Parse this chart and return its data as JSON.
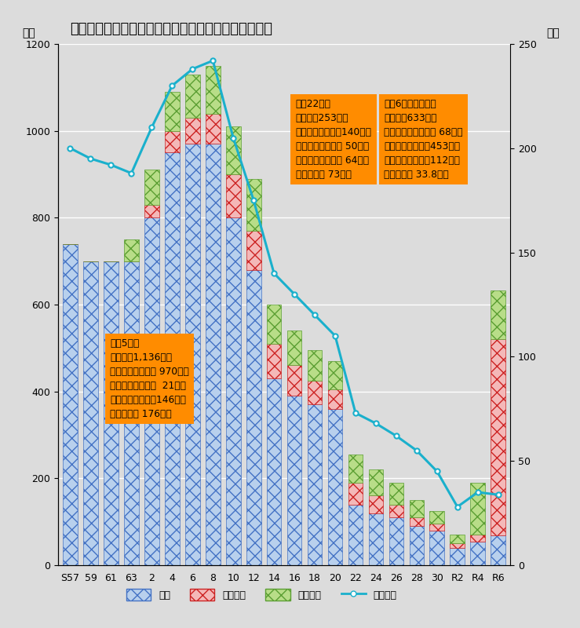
{
  "title": "ボートレース福岡売上・入場者数推移（都市圏除く）",
  "label_left": "億円",
  "label_right": "万人",
  "categories": [
    "S57",
    "59",
    "61",
    "63",
    "2",
    "4",
    "6",
    "8",
    "10",
    "12",
    "14",
    "16",
    "18",
    "20",
    "22",
    "24",
    "26",
    "28",
    "30",
    "R2",
    "R4",
    "R6"
  ],
  "honba": [
    740,
    700,
    700,
    700,
    800,
    950,
    970,
    970,
    800,
    680,
    430,
    390,
    370,
    360,
    140,
    120,
    110,
    90,
    80,
    40,
    55,
    68
  ],
  "denwa": [
    0,
    0,
    0,
    0,
    30,
    50,
    60,
    70,
    100,
    90,
    80,
    70,
    55,
    45,
    50,
    40,
    30,
    20,
    15,
    10,
    15,
    453
  ],
  "jomae": [
    0,
    0,
    0,
    50,
    80,
    90,
    100,
    110,
    110,
    120,
    90,
    80,
    70,
    65,
    64,
    60,
    50,
    40,
    30,
    20,
    120,
    112
  ],
  "visitors": [
    200,
    195,
    192,
    188,
    210,
    230,
    238,
    242,
    205,
    175,
    140,
    130,
    120,
    110,
    73,
    68,
    62,
    55,
    45,
    28,
    35,
    33.8
  ],
  "ylim_left": [
    0,
    1200
  ],
  "ylim_right": [
    0,
    250
  ],
  "yticks_left": [
    0,
    200,
    400,
    600,
    800,
    1000,
    1200
  ],
  "yticks_right": [
    0,
    50,
    100,
    150,
    200,
    250
  ],
  "bg_color": "#dcdcdc",
  "ann1_title": "平成5年度",
  "ann1_body": "総売上　1,136億円\n　本場売上　　　 970億円\n　電話投票売上　  21億円\n　場間場外売上　146億円\n総入場者数 176万人",
  "ann2_title": "平成22年度",
  "ann2_body": "総売上　253億円\n　本場売上　　　140億円\n　電話投票売上　 50億円\n　場間場外売上　 64億円\n総入場者数 73万人",
  "ann3_title": "令和6年度（見込）",
  "ann3_body": "総売上　633億円\n　本場売上　　　　 68億円\n　電話投票売上　453億円\n　場間場外売上　112億円\n総入場者数 33.8万人",
  "legend_honba": "本場",
  "legend_denwa": "電話投票",
  "legend_jomae": "場間場外",
  "legend_line": "入場者数"
}
